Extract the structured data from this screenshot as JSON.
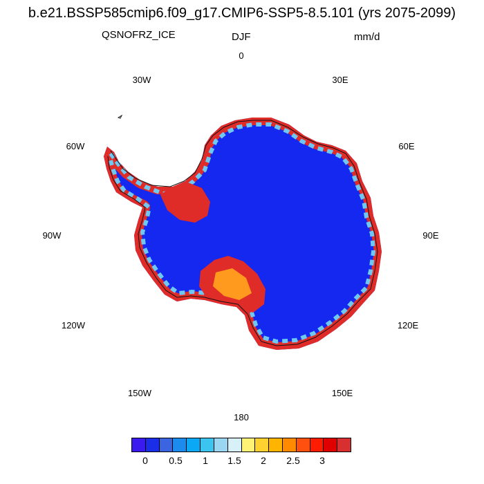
{
  "title": "b.e21.BSSP585cmip6.f09_g17.CMIP6-SSP5-8.5.101 (yrs 2075-2099)",
  "variable": "QSNOFRZ_ICE",
  "season": "DJF",
  "units": "mm/d",
  "longitude_labels": {
    "lon_0": "0",
    "lon_30e": "30E",
    "lon_60e": "60E",
    "lon_90e": "90E",
    "lon_120e": "120E",
    "lon_150e": "150E",
    "lon_180": "180",
    "lon_150w": "150W",
    "lon_120w": "120W",
    "lon_90w": "90W",
    "lon_60w": "60W",
    "lon_30w": "30W"
  },
  "colorbar": {
    "colors": [
      "#3a1aee",
      "#1a2ee8",
      "#3a64e0",
      "#1b8cee",
      "#0aa8f5",
      "#3cc4f0",
      "#9ad6f2",
      "#d8f0f8",
      "#fff275",
      "#ffd230",
      "#ffb400",
      "#ff8a00",
      "#ff5010",
      "#ff1c00",
      "#e00000",
      "#d83030"
    ],
    "tick_labels": [
      "0",
      "0.5",
      "1",
      "1.5",
      "2",
      "2.5",
      "3"
    ]
  },
  "map_colors": {
    "continent_fill": "#1428f0",
    "margin_high": "#e02c28",
    "margin_mid": "#ff9a1e",
    "margin_low": "#ffe068",
    "margin_cool": "#6ec8f2"
  }
}
